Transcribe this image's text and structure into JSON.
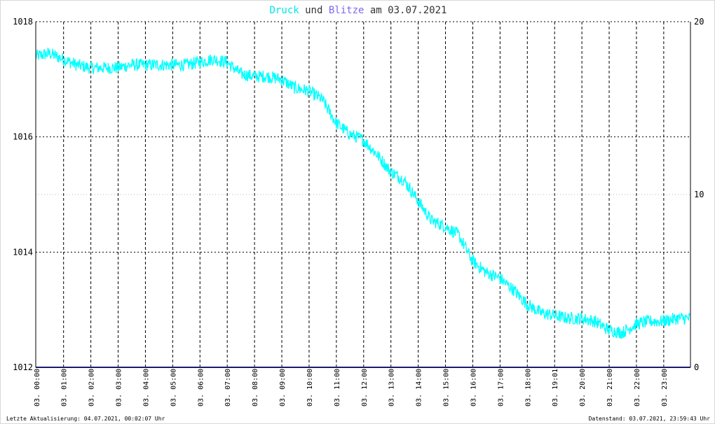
{
  "title": {
    "word1": "Druck",
    "word2": " und ",
    "word3": "Blitze",
    "word4": " am 03.07.2021",
    "color_druck": "#00e5e5",
    "color_blitze": "#7b68ee",
    "color_text": "#333333"
  },
  "footer": {
    "left": "Letzte Aktualisierung: 04.07.2021, 00:02:07 Uhr",
    "right": "Datenstand: 03.07.2021, 23:59:43 Uhr"
  },
  "chart_data": {
    "type": "line",
    "x_unit": "hours",
    "x_range": [
      0,
      24
    ],
    "y_left_range": [
      1012,
      1018
    ],
    "y_left_ticks": [
      "1012",
      "1014",
      "1016",
      "1018"
    ],
    "y_right_range": [
      0,
      20
    ],
    "y_right_ticks": [
      "0",
      "10",
      "20"
    ],
    "x_tick_hours": [
      0.02,
      1.02,
      2.02,
      3.02,
      4.02,
      5.02,
      6.02,
      7.02,
      8.02,
      9.02,
      10.02,
      11.02,
      12.02,
      13.02,
      14.02,
      15.02,
      16.02,
      17.02,
      18.02,
      19.02,
      20.02,
      21.02,
      22.02,
      23.02
    ],
    "x_tick_labels": [
      "03. 00:00",
      "03. 01:00",
      "03. 02:00",
      "03. 03:00",
      "03. 04:00",
      "03. 05:00",
      "03. 06:00",
      "03. 07:00",
      "03. 08:00",
      "03. 09:00",
      "03. 10:00",
      "03. 11:00",
      "03. 12:00",
      "03. 13:00",
      "03. 14:00",
      "03. 15:00",
      "03. 16:00",
      "03. 17:00",
      "03. 18:00",
      "03. 19:01",
      "03. 20:00",
      "03. 21:00",
      "03. 22:00",
      "03. 23:00"
    ],
    "grid": true,
    "series": [
      {
        "name": "Druck",
        "axis": "left",
        "color": "#00ffff",
        "x": [
          0,
          0.5,
          1,
          1.5,
          2,
          2.5,
          3,
          3.5,
          4,
          4.5,
          5,
          5.5,
          6,
          6.5,
          7,
          7.5,
          8,
          8.5,
          9,
          9.5,
          10,
          10.5,
          11,
          11.5,
          12,
          12.5,
          13,
          13.5,
          14,
          14.5,
          15,
          15.5,
          16,
          16.5,
          17,
          17.5,
          18,
          18.5,
          19,
          19.5,
          20,
          20.5,
          21,
          21.5,
          22,
          22.5,
          23,
          23.5,
          24
        ],
        "y": [
          1017.4,
          1017.45,
          1017.35,
          1017.25,
          1017.2,
          1017.2,
          1017.2,
          1017.25,
          1017.25,
          1017.25,
          1017.25,
          1017.25,
          1017.3,
          1017.35,
          1017.3,
          1017.1,
          1017.05,
          1017.05,
          1017.0,
          1016.85,
          1016.8,
          1016.65,
          1016.25,
          1016.05,
          1015.95,
          1015.7,
          1015.4,
          1015.25,
          1014.9,
          1014.55,
          1014.45,
          1014.3,
          1013.85,
          1013.65,
          1013.55,
          1013.35,
          1013.1,
          1012.95,
          1012.9,
          1012.85,
          1012.85,
          1012.8,
          1012.65,
          1012.6,
          1012.75,
          1012.8,
          1012.8,
          1012.85,
          1012.85
        ]
      },
      {
        "name": "Blitze",
        "axis": "right",
        "color": "#1a1a6e",
        "x": [
          0,
          24
        ],
        "y": [
          0,
          0
        ]
      }
    ]
  }
}
